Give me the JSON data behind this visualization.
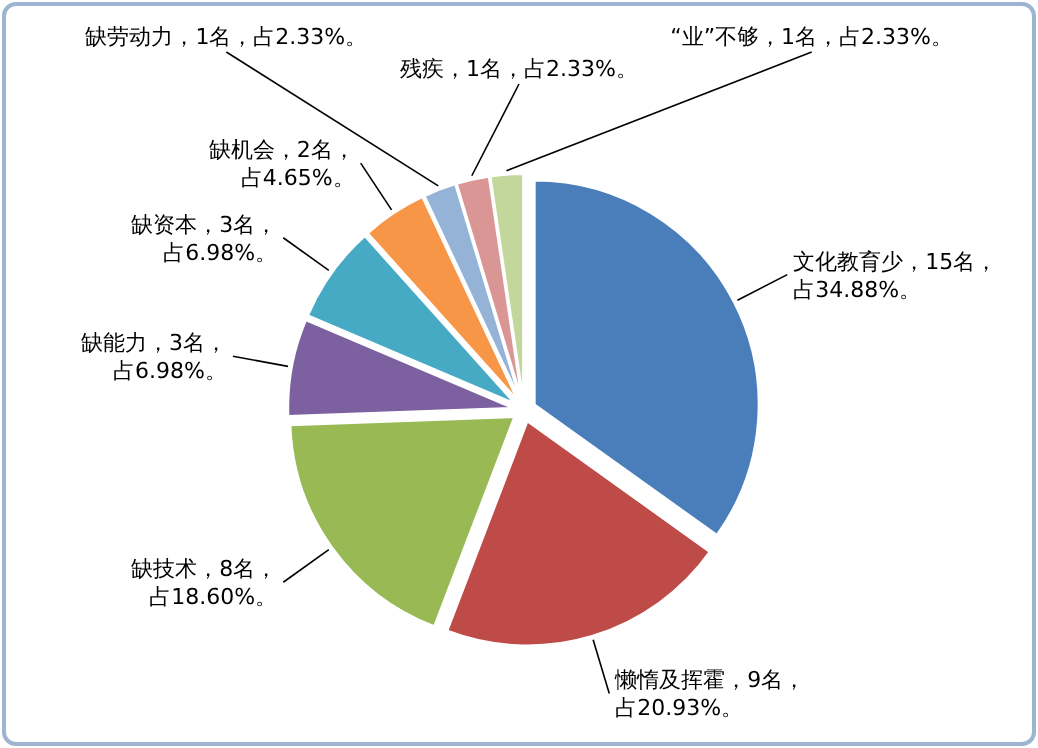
{
  "chart_data": {
    "type": "pie",
    "categories": [
      "文化教育少，15名，占34.88%。",
      "懒惰及挥霍，9名，占20.93%。",
      "缺技术，8名，占18.60%。",
      "缺能力，3名，占6.98%。",
      "缺资本，3名，占6.98%。",
      "缺机会，2名，占4.65%。",
      "缺劳动力，1名，占2.33%。",
      "残疾，1名，占2.33%。",
      "“业”不够，1名，占2.33%。"
    ],
    "values": [
      15,
      9,
      8,
      3,
      3,
      2,
      1,
      1,
      1
    ],
    "colors": [
      "#4a7ebb",
      "#be4b48",
      "#98b954",
      "#7d60a0",
      "#46aac5",
      "#f79646",
      "#95b3d7",
      "#d99694",
      "#c3d69b"
    ]
  }
}
